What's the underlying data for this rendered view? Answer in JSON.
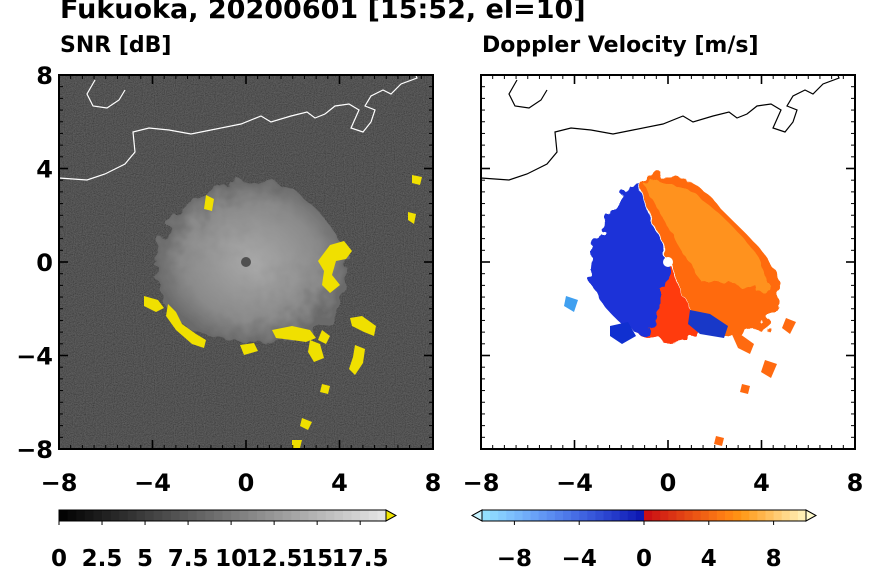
{
  "figure": {
    "title": "Fukuoka, 20200601 [15:52, el=10]"
  },
  "chart_data": [
    {
      "type": "heatmap",
      "panel": "left",
      "title": "SNR [dB]",
      "xlabel": "",
      "ylabel": "",
      "xlim": [
        -8,
        8
      ],
      "ylim": [
        -8,
        8
      ],
      "x_ticks": [
        -8,
        -4,
        0,
        4,
        8
      ],
      "y_ticks": [
        -8,
        -4,
        0,
        4,
        8
      ],
      "x_tick_labels": [
        "−8",
        "−4",
        "0",
        "4",
        "8"
      ],
      "y_tick_labels": [
        "−8",
        "−4",
        "0",
        "4",
        "8"
      ],
      "background_color": "#1e1e1e",
      "echo_color": "#8c8c8c",
      "high_snr_color": "#f2e600",
      "colorbar": {
        "range": [
          0,
          19
        ],
        "extend": "max",
        "tick_values": [
          0,
          2.5,
          5,
          7.5,
          10,
          12.5,
          15,
          17.5
        ],
        "tick_labels": [
          "0",
          "2.5",
          "5",
          "7.5",
          "10",
          "12.5",
          "15",
          "17.5"
        ]
      }
    },
    {
      "type": "heatmap",
      "panel": "right",
      "title": "Doppler Velocity [m/s]",
      "xlabel": "",
      "ylabel": "",
      "xlim": [
        -8,
        8
      ],
      "ylim": [
        -8,
        8
      ],
      "x_ticks": [
        -8,
        -4,
        0,
        4,
        8
      ],
      "y_ticks": [
        -8,
        -4,
        0,
        4,
        8
      ],
      "x_tick_labels": [
        "−8",
        "−4",
        "0",
        "4",
        "8"
      ],
      "y_tick_labels": [
        "−8",
        "−4",
        "0",
        "4",
        "8"
      ],
      "approaching_color": "#1030d0",
      "receding_color": "#ff5a10",
      "colorbar": {
        "range": [
          -10,
          10
        ],
        "extend": "both",
        "tick_values": [
          -8,
          -4,
          0,
          4,
          8
        ],
        "tick_labels": [
          "−8",
          "−4",
          "0",
          "4",
          "8"
        ]
      }
    }
  ]
}
